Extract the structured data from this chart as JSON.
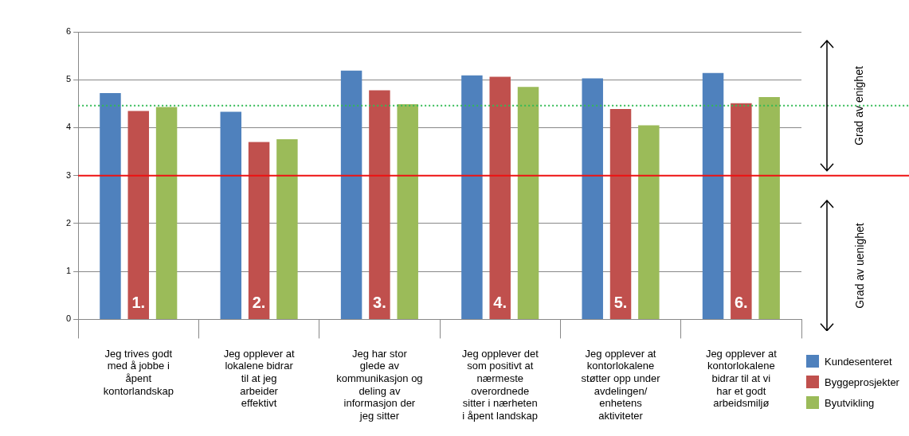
{
  "chart_data": {
    "type": "bar",
    "categories": [
      "Jeg trives godt med å jobbe i åpent kontorlandskap",
      "Jeg opplever at lokalene bidrar til at jeg arbeider effektivt",
      "Jeg har stor glede av kommunikasjon og deling av informasjon der jeg sitter",
      "Jeg opplever det som positivt at nærmeste overordnede sitter i nærheten i åpent landskap",
      "Jeg opplever at kontorlokalene støtter opp under avdelingen/ enhetens aktiviteter",
      "Jeg opplever at kontorlokalene bidrar til at vi har et godt arbeidsmiljø"
    ],
    "series": [
      {
        "name": "Kundesenteret",
        "color": "#4f81bd",
        "values": [
          4.72,
          4.33,
          5.19,
          5.09,
          5.03,
          5.14
        ]
      },
      {
        "name": "Byggeprosjekter",
        "color": "#c0504d",
        "values": [
          4.35,
          3.7,
          4.78,
          5.06,
          4.39,
          4.51
        ]
      },
      {
        "name": "Byutvikling",
        "color": "#9bbb59",
        "values": [
          4.43,
          3.76,
          4.49,
          4.85,
          4.05,
          4.64
        ]
      }
    ],
    "ylim": [
      0,
      6
    ],
    "yticks": [
      0,
      1,
      2,
      3,
      4,
      5,
      6
    ],
    "grid": "y",
    "legend": "bottom right",
    "ref_lines": [
      {
        "axis": "y",
        "value": 4.46,
        "color": "#33bb55",
        "line_style": "dotted"
      },
      {
        "axis": "y",
        "value": 3,
        "color": "#ee1111",
        "line_style": "solid"
      }
    ],
    "annotations": [
      "1.",
      "2.",
      "3.",
      "4.",
      "5.",
      "6.",
      "Grad av enighet",
      "Grad av uenighet"
    ]
  }
}
